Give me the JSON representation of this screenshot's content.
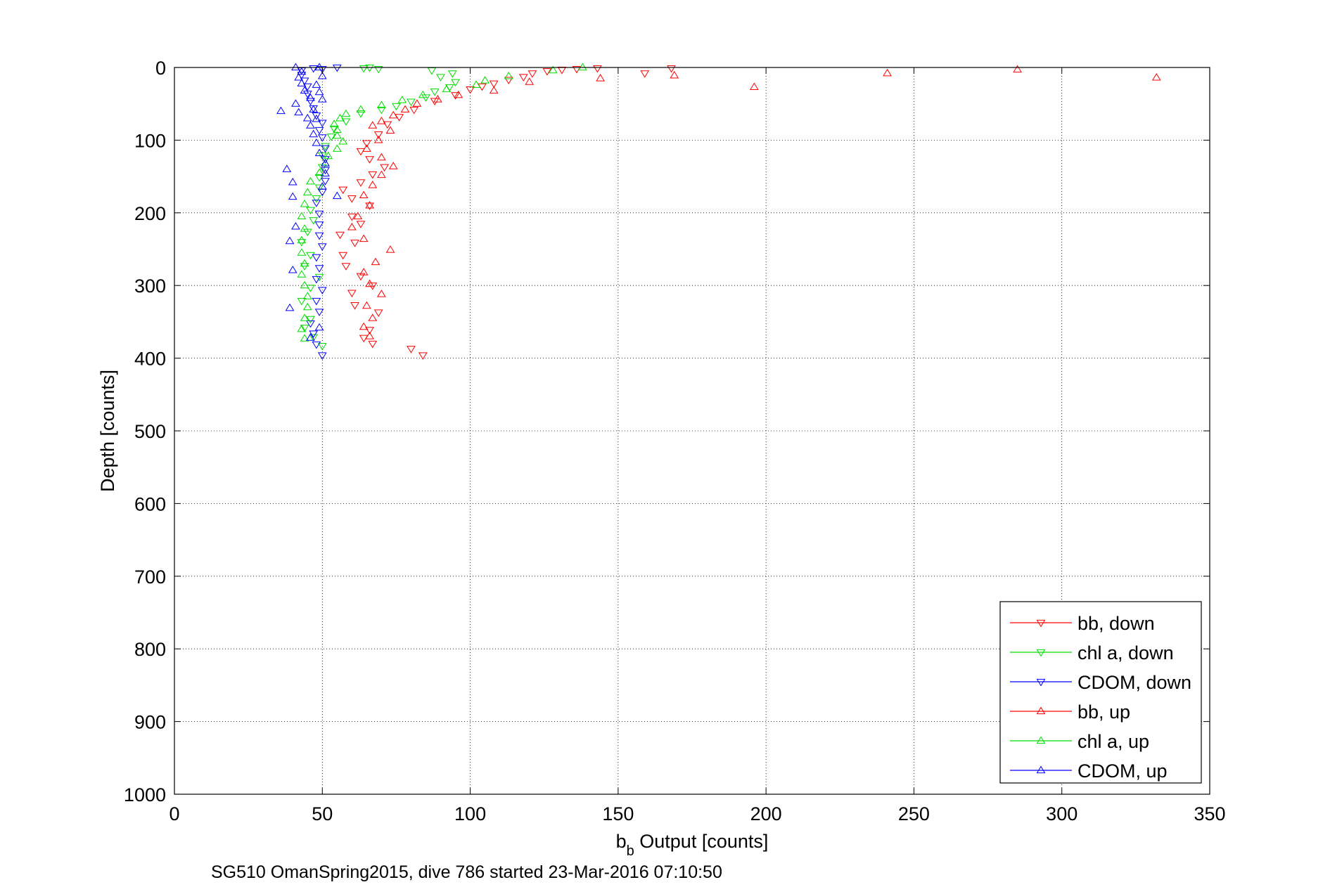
{
  "chart_data": {
    "type": "scatter",
    "xlabel_main": "b",
    "xlabel_sub": "b",
    "xlabel_rest": " Output [counts]",
    "ylabel": "Depth [counts]",
    "caption": "SG510 OmanSpring2015, dive 786 started 23-Mar-2016 07:10:50",
    "xlim": [
      0,
      350
    ],
    "ylim": [
      0,
      1000
    ],
    "y_reversed": true,
    "grid": true,
    "grid_style": "dotted",
    "legend_position": "bottom-right",
    "x_ticks": [
      "0",
      "50",
      "100",
      "150",
      "200",
      "250",
      "300",
      "350"
    ],
    "y_ticks": [
      "0",
      "100",
      "200",
      "300",
      "400",
      "500",
      "600",
      "700",
      "800",
      "900",
      "1000"
    ],
    "series": [
      {
        "name": "bb, down",
        "color": "#ff0000",
        "marker": "triangle-down",
        "points": [
          [
            84,
            396
          ],
          [
            80,
            387
          ],
          [
            67,
            380
          ],
          [
            64,
            372
          ],
          [
            66,
            361
          ],
          [
            69,
            337
          ],
          [
            61,
            327
          ],
          [
            60,
            310
          ],
          [
            67,
            300
          ],
          [
            63,
            287
          ],
          [
            58,
            273
          ],
          [
            57,
            258
          ],
          [
            61,
            241
          ],
          [
            56,
            230
          ],
          [
            63,
            215
          ],
          [
            60,
            205
          ],
          [
            66,
            190
          ],
          [
            60,
            180
          ],
          [
            57,
            168
          ],
          [
            63,
            158
          ],
          [
            67,
            147
          ],
          [
            71,
            137
          ],
          [
            66,
            126
          ],
          [
            63,
            115
          ],
          [
            65,
            104
          ],
          [
            69,
            92
          ],
          [
            72,
            78
          ],
          [
            76,
            68
          ],
          [
            81,
            58
          ],
          [
            88,
            46
          ],
          [
            95,
            38
          ],
          [
            100,
            30
          ],
          [
            104,
            26
          ],
          [
            108,
            22
          ],
          [
            113,
            17
          ],
          [
            118,
            13
          ],
          [
            121,
            8
          ],
          [
            126,
            5
          ],
          [
            131,
            3
          ],
          [
            136,
            2
          ],
          [
            143,
            1
          ],
          [
            159,
            8
          ],
          [
            168,
            1
          ]
        ]
      },
      {
        "name": "chl a, down",
        "color": "#00dd00",
        "marker": "triangle-down",
        "points": [
          [
            50,
            383
          ],
          [
            47,
            371
          ],
          [
            44,
            358
          ],
          [
            46,
            346
          ],
          [
            43,
            321
          ],
          [
            46,
            303
          ],
          [
            49,
            288
          ],
          [
            44,
            273
          ],
          [
            46,
            258
          ],
          [
            43,
            240
          ],
          [
            45,
            226
          ],
          [
            47,
            210
          ],
          [
            46,
            196
          ],
          [
            48,
            180
          ],
          [
            49,
            165
          ],
          [
            49,
            151
          ],
          [
            50,
            137
          ],
          [
            50,
            121
          ],
          [
            51,
            108
          ],
          [
            53,
            95
          ],
          [
            54,
            84
          ],
          [
            58,
            74
          ],
          [
            63,
            63
          ],
          [
            70,
            58
          ],
          [
            75,
            53
          ],
          [
            80,
            47
          ],
          [
            85,
            41
          ],
          [
            88,
            33
          ],
          [
            93,
            27
          ],
          [
            95,
            20
          ],
          [
            90,
            13
          ],
          [
            94,
            8
          ],
          [
            87,
            4
          ],
          [
            69,
            2
          ],
          [
            64,
            1
          ],
          [
            66,
            0
          ]
        ]
      },
      {
        "name": "CDOM, down",
        "color": "#0000ff",
        "marker": "triangle-down",
        "points": [
          [
            50,
            396
          ],
          [
            48,
            381
          ],
          [
            47,
            366
          ],
          [
            46,
            352
          ],
          [
            49,
            336
          ],
          [
            48,
            321
          ],
          [
            50,
            306
          ],
          [
            48,
            291
          ],
          [
            49,
            276
          ],
          [
            48,
            261
          ],
          [
            50,
            246
          ],
          [
            49,
            231
          ],
          [
            49,
            216
          ],
          [
            49,
            201
          ],
          [
            48,
            186
          ],
          [
            50,
            171
          ],
          [
            51,
            156
          ],
          [
            51,
            141
          ],
          [
            51,
            126
          ],
          [
            51,
            111
          ],
          [
            50,
            96
          ],
          [
            49,
            86
          ],
          [
            50,
            76
          ],
          [
            48,
            66
          ],
          [
            47,
            56
          ],
          [
            46,
            46
          ],
          [
            45,
            36
          ],
          [
            45,
            26
          ],
          [
            44,
            18
          ],
          [
            43,
            10
          ],
          [
            43,
            4
          ],
          [
            47,
            1
          ],
          [
            50,
            2
          ],
          [
            55,
            0
          ]
        ]
      },
      {
        "name": "bb, up",
        "color": "#ff0000",
        "marker": "triangle-up",
        "points": [
          [
            332,
            14
          ],
          [
            285,
            3
          ],
          [
            241,
            8
          ],
          [
            196,
            27
          ],
          [
            169,
            11
          ],
          [
            144,
            15
          ],
          [
            120,
            20
          ],
          [
            108,
            32
          ],
          [
            96,
            38
          ],
          [
            89,
            44
          ],
          [
            82,
            50
          ],
          [
            78,
            58
          ],
          [
            74,
            66
          ],
          [
            70,
            74
          ],
          [
            67,
            80
          ],
          [
            73,
            87
          ],
          [
            69,
            100
          ],
          [
            65,
            112
          ],
          [
            70,
            124
          ],
          [
            74,
            136
          ],
          [
            70,
            148
          ],
          [
            67,
            162
          ],
          [
            64,
            176
          ],
          [
            66,
            190
          ],
          [
            62,
            205
          ],
          [
            60,
            220
          ],
          [
            64,
            236
          ],
          [
            73,
            251
          ],
          [
            68,
            268
          ],
          [
            64,
            282
          ],
          [
            66,
            298
          ],
          [
            70,
            312
          ],
          [
            65,
            328
          ],
          [
            67,
            345
          ],
          [
            64,
            357
          ],
          [
            66,
            370
          ]
        ]
      },
      {
        "name": "chl a, up",
        "color": "#00dd00",
        "marker": "triangle-up",
        "points": [
          [
            138,
            0
          ],
          [
            128,
            4
          ],
          [
            113,
            12
          ],
          [
            105,
            18
          ],
          [
            102,
            24
          ],
          [
            92,
            30
          ],
          [
            84,
            38
          ],
          [
            77,
            45
          ],
          [
            70,
            52
          ],
          [
            63,
            58
          ],
          [
            58,
            64
          ],
          [
            56,
            70
          ],
          [
            54,
            78
          ],
          [
            55,
            86
          ],
          [
            55,
            94
          ],
          [
            57,
            102
          ],
          [
            55,
            112
          ],
          [
            52,
            122
          ],
          [
            51,
            132
          ],
          [
            49,
            145
          ],
          [
            46,
            157
          ],
          [
            45,
            172
          ],
          [
            44,
            188
          ],
          [
            43,
            205
          ],
          [
            44,
            222
          ],
          [
            43,
            238
          ],
          [
            43,
            255
          ],
          [
            44,
            270
          ],
          [
            43,
            285
          ],
          [
            44,
            300
          ],
          [
            45,
            315
          ],
          [
            45,
            330
          ],
          [
            44,
            345
          ],
          [
            43,
            360
          ],
          [
            44,
            373
          ]
        ]
      },
      {
        "name": "CDOM, up",
        "color": "#0000ff",
        "marker": "triangle-up",
        "points": [
          [
            39,
            331
          ],
          [
            40,
            279
          ],
          [
            39,
            239
          ],
          [
            41,
            219
          ],
          [
            40,
            178
          ],
          [
            40,
            158
          ],
          [
            38,
            140
          ],
          [
            55,
            177
          ],
          [
            50,
            164
          ],
          [
            51,
            146
          ],
          [
            51,
            132
          ],
          [
            49,
            118
          ],
          [
            48,
            104
          ],
          [
            47,
            92
          ],
          [
            46,
            80
          ],
          [
            45,
            70
          ],
          [
            42,
            62
          ],
          [
            36,
            60
          ],
          [
            41,
            50
          ],
          [
            46,
            42
          ],
          [
            44,
            32
          ],
          [
            43,
            22
          ],
          [
            42,
            14
          ],
          [
            43,
            6
          ],
          [
            41,
            0
          ],
          [
            49,
            0
          ],
          [
            50,
            12
          ],
          [
            48,
            24
          ],
          [
            49,
            34
          ],
          [
            50,
            44
          ],
          [
            47,
            58
          ],
          [
            48,
            71
          ],
          [
            46,
            372
          ],
          [
            49,
            358
          ]
        ]
      }
    ]
  }
}
